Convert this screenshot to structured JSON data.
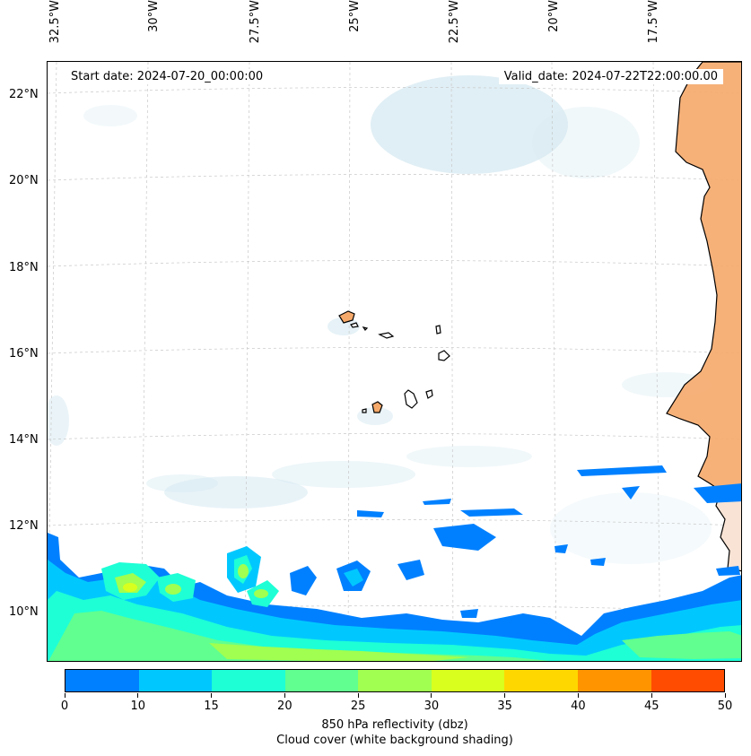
{
  "map": {
    "start_date": "Start date: 2024-07-20_00:00:00",
    "valid_date": "Valid_date: 2024-07-22T22:00:00.00",
    "lon_labels": [
      "32.5°W",
      "30°W",
      "27.5°W",
      "25°W",
      "22.5°W",
      "20°W",
      "17.5°W"
    ],
    "lat_labels": [
      "22°N",
      "20°N",
      "18°N",
      "16°N",
      "14°N",
      "12°N",
      "10°N"
    ],
    "colors": {
      "land": "#f5a96a",
      "coast": "#000000",
      "cloud": "#d6eaf2",
      "grid": "#c8c8c8"
    }
  },
  "colorbar": {
    "ticks": [
      "0",
      "10",
      "15",
      "20",
      "25",
      "30",
      "35",
      "40",
      "45",
      "50"
    ],
    "colors": [
      "#0080ff",
      "#00c8ff",
      "#1effd6",
      "#60ff90",
      "#a0ff50",
      "#d8ff1e",
      "#ffd700",
      "#ff9400",
      "#ff4c00"
    ],
    "label_line1": "850 hPa reflectivity (dbz)",
    "label_line2": "Cloud cover (white background shading)"
  }
}
